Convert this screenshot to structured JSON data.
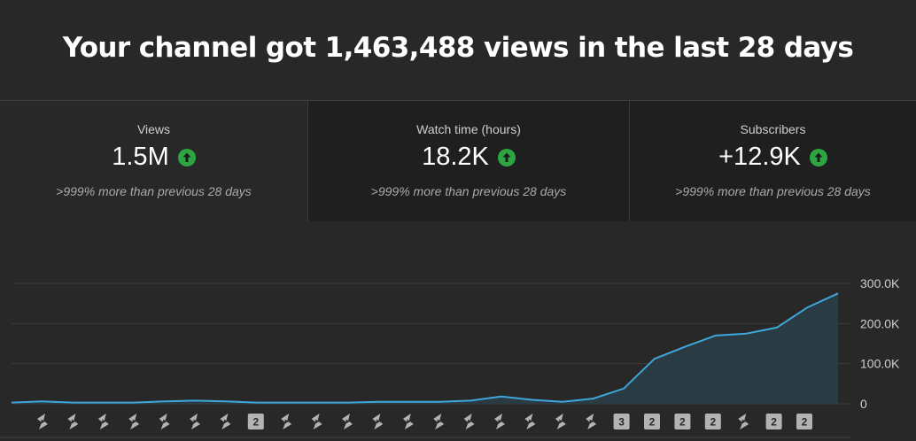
{
  "header": {
    "headline": "Your channel got 1,463,488 views in the last 28 days"
  },
  "metrics": [
    {
      "label": "Views",
      "value": "1.5M",
      "compare": ">999% more than previous 28 days",
      "trend_icon": "arrow-up-circle-icon"
    },
    {
      "label": "Watch time (hours)",
      "value": "18.2K",
      "compare": ">999% more than previous 28 days",
      "trend_icon": "arrow-up-circle-icon"
    },
    {
      "label": "Subscribers",
      "value": "+12.9K",
      "compare": ">999% more than previous 28 days",
      "trend_icon": "arrow-up-circle-icon"
    }
  ],
  "colors": {
    "line": "#3ea6d9",
    "area": "#2a3b44",
    "up_icon": "#2ba640",
    "background": "#282828",
    "panel_dark": "#1f1f1f"
  },
  "chart_data": {
    "type": "area",
    "x": [
      1,
      2,
      3,
      4,
      5,
      6,
      7,
      8,
      9,
      10,
      11,
      12,
      13,
      14,
      15,
      16,
      17,
      18,
      19,
      20,
      21,
      22,
      23,
      24,
      25,
      26,
      27,
      28
    ],
    "values": [
      3000,
      6000,
      3000,
      3000,
      3000,
      6000,
      8000,
      6000,
      3000,
      3000,
      3000,
      3000,
      5000,
      5000,
      5000,
      8000,
      18000,
      10000,
      5000,
      13000,
      38000,
      112000,
      142000,
      170000,
      175000,
      190000,
      240000,
      275000
    ],
    "ylim": [
      0,
      300000
    ],
    "y_ticks": [
      {
        "value": 0,
        "label": "0"
      },
      {
        "value": 100000,
        "label": "100.0K"
      },
      {
        "value": 200000,
        "label": "200.0K"
      },
      {
        "value": 300000,
        "label": "300.0K"
      }
    ],
    "grid": true,
    "markers": [
      {
        "type": "shorts-icon"
      },
      {
        "type": "shorts-icon"
      },
      {
        "type": "shorts-icon"
      },
      {
        "type": "shorts-icon"
      },
      {
        "type": "shorts-icon"
      },
      {
        "type": "shorts-icon"
      },
      {
        "type": "shorts-icon"
      },
      {
        "type": "count",
        "label": "2"
      },
      {
        "type": "shorts-icon"
      },
      {
        "type": "shorts-icon"
      },
      {
        "type": "shorts-icon"
      },
      {
        "type": "shorts-icon"
      },
      {
        "type": "shorts-icon"
      },
      {
        "type": "shorts-icon"
      },
      {
        "type": "shorts-icon"
      },
      {
        "type": "shorts-icon"
      },
      {
        "type": "shorts-icon"
      },
      {
        "type": "shorts-icon"
      },
      {
        "type": "shorts-icon"
      },
      {
        "type": "count",
        "label": "3"
      },
      {
        "type": "count",
        "label": "2"
      },
      {
        "type": "count",
        "label": "2"
      },
      {
        "type": "count",
        "label": "2"
      },
      {
        "type": "shorts-icon"
      },
      {
        "type": "count",
        "label": "2"
      },
      {
        "type": "count",
        "label": "2"
      }
    ]
  }
}
